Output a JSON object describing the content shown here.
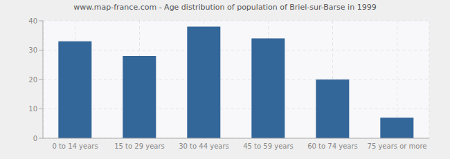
{
  "chart_data": {
    "type": "bar",
    "title": "www.map-france.com - Age distribution of population of Briel-sur-Barse in 1999",
    "categories": [
      "0 to 14 years",
      "15 to 29 years",
      "30 to 44 years",
      "45 to 59 years",
      "60 to 74 years",
      "75 years or more"
    ],
    "values": [
      33,
      28,
      38,
      34,
      20,
      7
    ],
    "color": "#336699",
    "ylim": [
      0,
      40
    ],
    "yticks": [
      0,
      10,
      20,
      30,
      40
    ],
    "grid": true
  }
}
